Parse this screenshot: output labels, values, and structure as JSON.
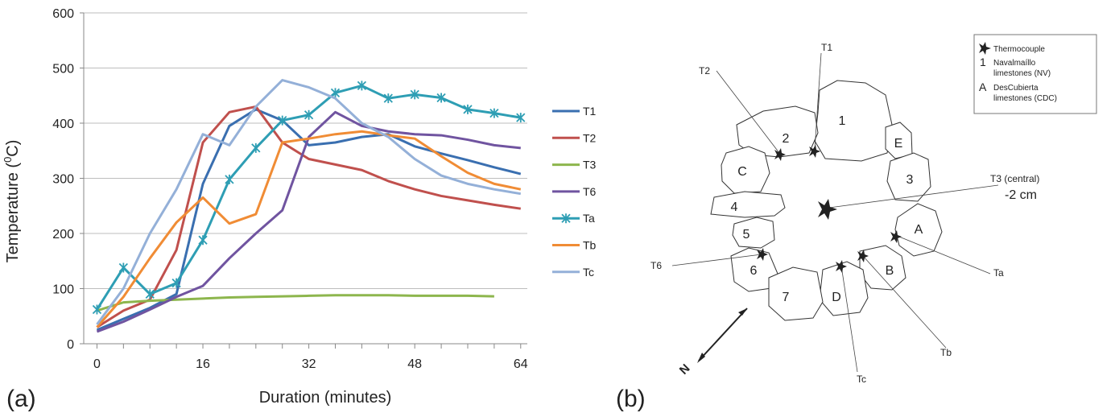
{
  "chart_data": {
    "type": "line",
    "panel_label": "(a)",
    "xlabel": "Duration (minutes)",
    "ylabel": "Temperature (°C)",
    "ylabel_parts": {
      "pre": "Temperature (",
      "sup": "0",
      "post": "C)"
    },
    "xlim": [
      -2,
      65
    ],
    "ylim": [
      0,
      600
    ],
    "xticks": [
      0,
      16,
      32,
      48,
      64
    ],
    "yticks": [
      0,
      100,
      200,
      300,
      400,
      500,
      600
    ],
    "grid": "horizontal",
    "legend_position": "right",
    "series": [
      {
        "name": "T1",
        "color": "#3a6fb0",
        "marker": "none",
        "x": [
          0,
          4,
          8,
          12,
          16,
          20,
          24,
          28,
          32,
          36,
          40,
          44,
          48,
          52,
          56,
          60,
          64
        ],
        "y": [
          25,
          45,
          65,
          90,
          290,
          395,
          425,
          405,
          360,
          365,
          375,
          380,
          358,
          345,
          333,
          320,
          308
        ]
      },
      {
        "name": "T2",
        "color": "#c0504d",
        "marker": "none",
        "x": [
          0,
          4,
          8,
          12,
          16,
          20,
          24,
          28,
          32,
          36,
          40,
          44,
          48,
          52,
          56,
          60,
          64
        ],
        "y": [
          30,
          60,
          80,
          170,
          365,
          420,
          430,
          365,
          335,
          325,
          315,
          295,
          280,
          268,
          260,
          252,
          245
        ]
      },
      {
        "name": "T3",
        "color": "#8db64d",
        "marker": "none",
        "x": [
          0,
          4,
          8,
          12,
          16,
          20,
          24,
          28,
          32,
          36,
          40,
          44,
          48,
          52,
          56,
          60
        ],
        "y": [
          60,
          75,
          78,
          80,
          82,
          84,
          85,
          86,
          87,
          88,
          88,
          88,
          87,
          87,
          87,
          86
        ]
      },
      {
        "name": "T6",
        "color": "#7054a0",
        "marker": "none",
        "x": [
          0,
          4,
          8,
          12,
          16,
          20,
          24,
          28,
          32,
          36,
          40,
          44,
          48,
          52,
          56,
          60,
          64
        ],
        "y": [
          22,
          40,
          62,
          85,
          105,
          155,
          200,
          242,
          375,
          420,
          395,
          385,
          380,
          378,
          370,
          360,
          355
        ]
      },
      {
        "name": "Ta",
        "color": "#2e9eb4",
        "marker": "asterisk",
        "x": [
          0,
          4,
          8,
          12,
          16,
          20,
          24,
          28,
          32,
          36,
          40,
          44,
          48,
          52,
          56,
          60,
          64
        ],
        "y": [
          62,
          138,
          90,
          110,
          188,
          298,
          355,
          405,
          415,
          455,
          468,
          445,
          452,
          446,
          425,
          418,
          410
        ]
      },
      {
        "name": "Tb",
        "color": "#f08c35",
        "marker": "none",
        "x": [
          0,
          4,
          8,
          12,
          16,
          20,
          24,
          28,
          32,
          36,
          40,
          44,
          48,
          52,
          56,
          60,
          64
        ],
        "y": [
          30,
          85,
          155,
          220,
          265,
          218,
          235,
          365,
          372,
          380,
          385,
          378,
          372,
          340,
          310,
          290,
          280
        ]
      },
      {
        "name": "Tc",
        "color": "#94b0d8",
        "marker": "none",
        "x": [
          0,
          4,
          8,
          12,
          16,
          20,
          24,
          28,
          32,
          36,
          40,
          44,
          48,
          52,
          56,
          60,
          64
        ],
        "y": [
          35,
          100,
          200,
          280,
          380,
          360,
          430,
          478,
          465,
          445,
          400,
          375,
          335,
          305,
          290,
          280,
          272
        ]
      }
    ]
  },
  "diagram": {
    "panel_label": "(b)",
    "legend": {
      "thermocouple": "Thermocouple",
      "nv_key": "1",
      "nv_line1": "Navalmaíllo",
      "nv_line2": "limestones (NV)",
      "cdc_key": "A",
      "cdc_line1": "DesCubierta",
      "cdc_line2": "limestones (CDC)"
    },
    "stones": [
      "1",
      "2",
      "3",
      "4",
      "5",
      "6",
      "7",
      "A",
      "B",
      "C",
      "D",
      "E"
    ],
    "callouts": {
      "T1": "T1",
      "T2": "T2",
      "T3a": "T3 (central)",
      "T3b": "-2 cm",
      "T6": "T6",
      "Ta": "Ta",
      "Tb": "Tb",
      "Tc": "Tc"
    },
    "north": "N"
  }
}
